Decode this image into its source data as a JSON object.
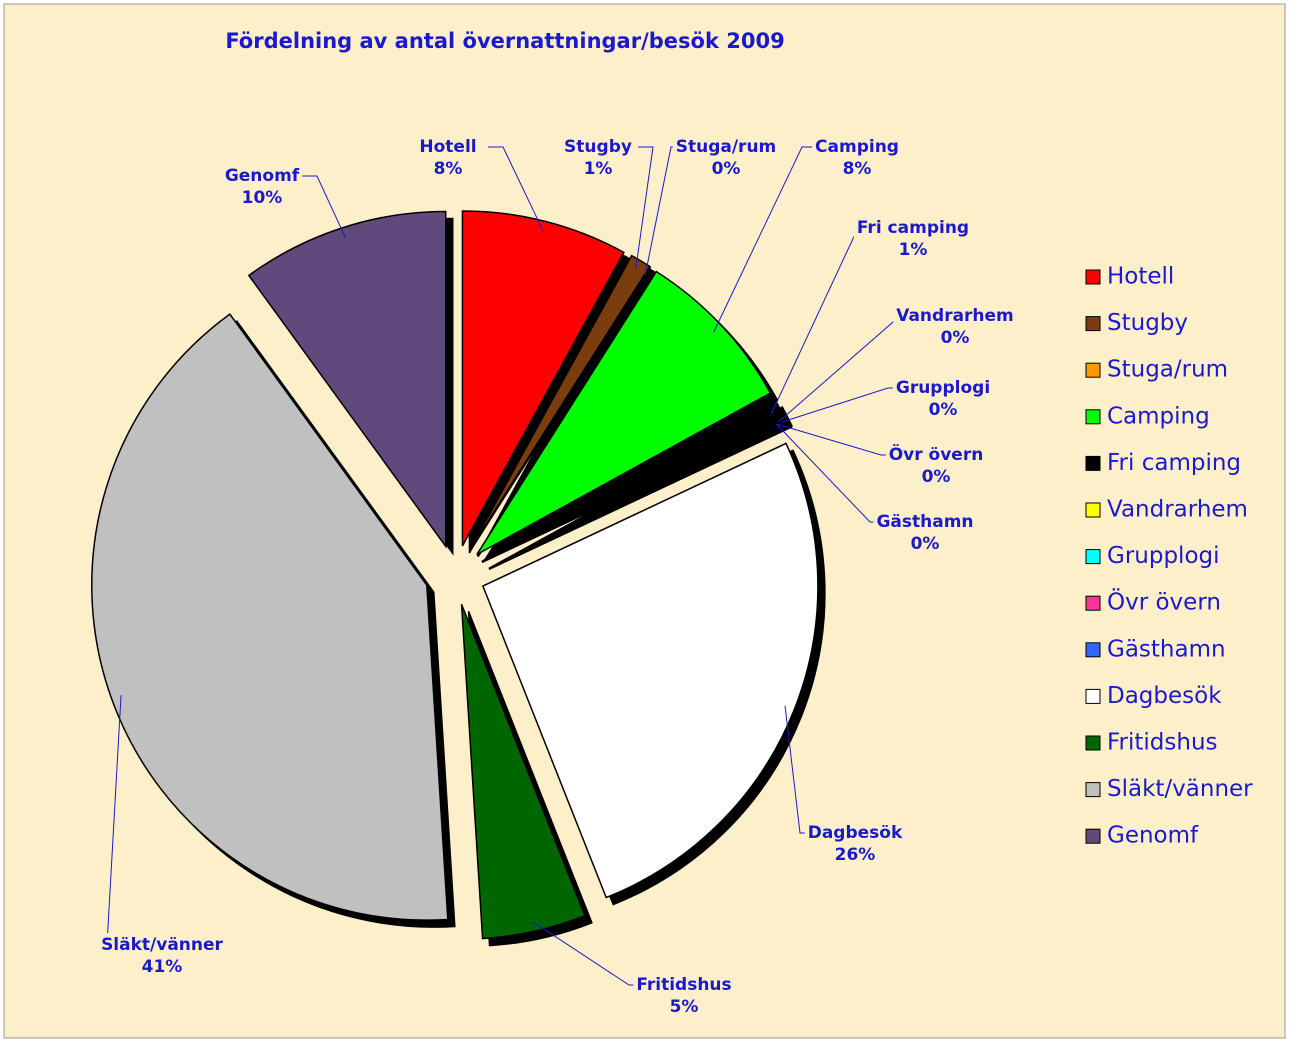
{
  "chart_data": {
    "type": "pie",
    "title": "Fördelning av antal övernattningar/besök 2009",
    "categories": [
      "Hotell",
      "Stugby",
      "Stuga/rum",
      "Camping",
      "Fri camping",
      "Vandrarhem",
      "Grupplogi",
      "Övr övern",
      "Gästhamn",
      "Dagbesök",
      "Fritidshus",
      "Släkt/vänner",
      "Genomf"
    ],
    "values": [
      8,
      1,
      0,
      8,
      1,
      0,
      0,
      0,
      0,
      26,
      5,
      41,
      10
    ],
    "value_labels": [
      "8%",
      "1%",
      "0%",
      "8%",
      "1%",
      "0%",
      "0%",
      "0%",
      "0%",
      "26%",
      "5%",
      "41%",
      "10%"
    ],
    "colors": [
      "#ff0000",
      "#7a3c0a",
      "#ff9900",
      "#00ff00",
      "#000000",
      "#ffff00",
      "#00ffff",
      "#ff3399",
      "#3366ff",
      "#ffffff",
      "#006600",
      "#c0c0c0",
      "#604a7b"
    ],
    "legend": "right"
  }
}
